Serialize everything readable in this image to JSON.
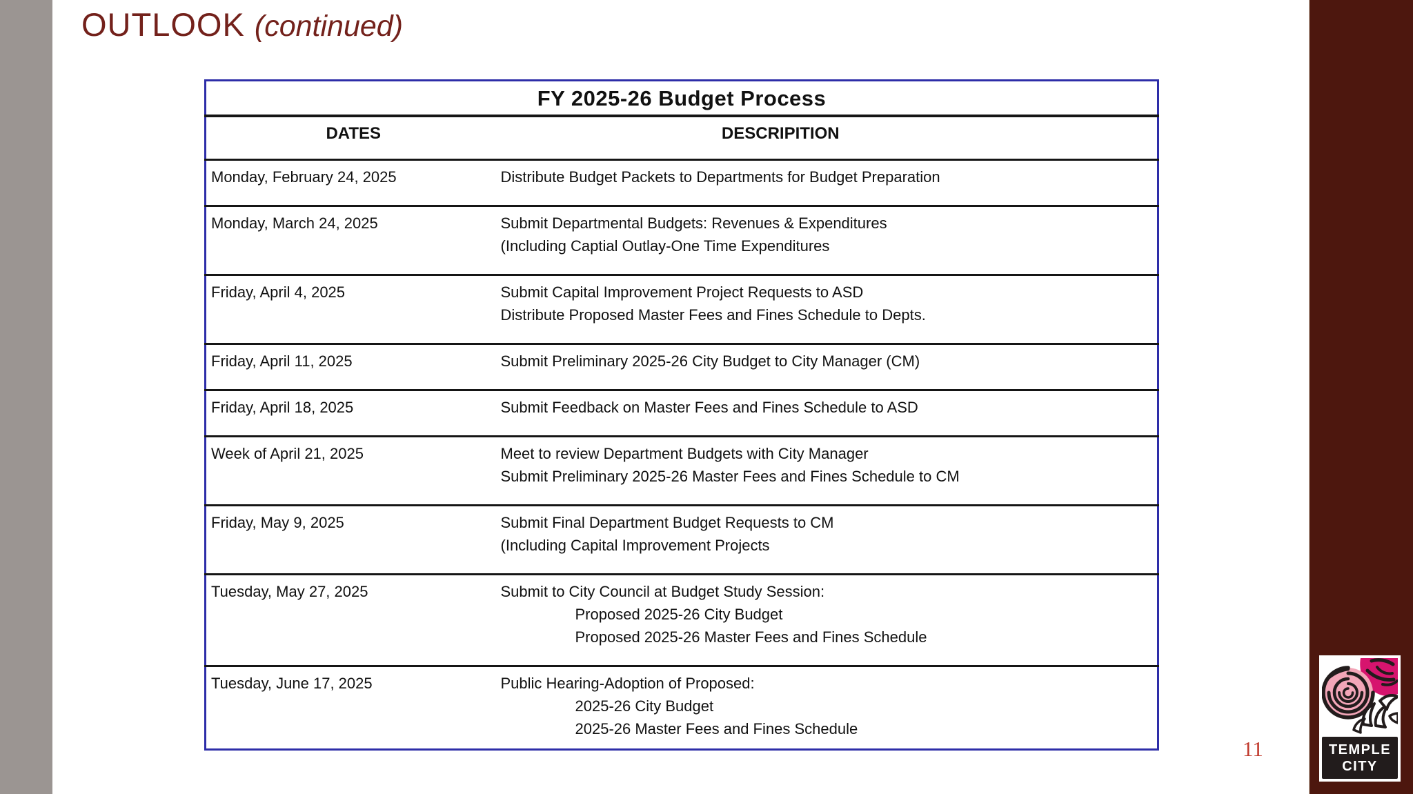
{
  "slide": {
    "title_main": "OUTLOOK",
    "title_suffix": "(continued)",
    "page_number": "11"
  },
  "colors": {
    "accent_maroon": "#4d170e",
    "title_maroon": "#73211b",
    "left_bar_gray": "#9b9592",
    "table_border_blue": "#2d2da8",
    "page_number_red": "#c13a2d",
    "logo_magenta": "#d6146e",
    "logo_pink": "#f3a6b8"
  },
  "logo": {
    "line1": "TEMPLE",
    "line2": "CITY"
  },
  "table": {
    "title": "FY 2025-26 Budget Process",
    "columns": [
      "DATES",
      "DESCRIPITION"
    ],
    "rows": [
      {
        "date": "Monday, February 24, 2025",
        "lines": [
          {
            "text": "Distribute Budget Packets to Departments for Budget Preparation",
            "indent": false
          }
        ]
      },
      {
        "date": "Monday, March 24, 2025",
        "lines": [
          {
            "text": "Submit Departmental Budgets: Revenues & Expenditures",
            "indent": false
          },
          {
            "text": "(Including Captial Outlay-One Time Expenditures",
            "indent": false
          }
        ]
      },
      {
        "date": "Friday, April 4, 2025",
        "lines": [
          {
            "text": "Submit Capital Improvement Project Requests to ASD",
            "indent": false
          },
          {
            "text": "Distribute Proposed Master Fees and Fines Schedule to Depts.",
            "indent": false
          }
        ]
      },
      {
        "date": "Friday, April 11, 2025",
        "lines": [
          {
            "text": "Submit Preliminary 2025-26 City Budget to City Manager (CM)",
            "indent": false
          }
        ]
      },
      {
        "date": "Friday, April 18, 2025",
        "lines": [
          {
            "text": "Submit Feedback on Master Fees and Fines Schedule to ASD",
            "indent": false
          }
        ]
      },
      {
        "date": "Week of April 21, 2025",
        "lines": [
          {
            "text": "Meet to review Department Budgets with City Manager",
            "indent": false
          },
          {
            "text": "Submit Preliminary 2025-26 Master Fees and Fines Schedule to CM",
            "indent": false
          }
        ]
      },
      {
        "date": "Friday, May 9, 2025",
        "lines": [
          {
            "text": "Submit Final Department Budget Requests to CM",
            "indent": false
          },
          {
            "text": "(Including Capital Improvement Projects",
            "indent": false
          }
        ]
      },
      {
        "date": "Tuesday, May 27, 2025",
        "lines": [
          {
            "text": "Submit to City Council at Budget Study Session:",
            "indent": false
          },
          {
            "text": "Proposed 2025-26 City Budget",
            "indent": true
          },
          {
            "text": "Proposed 2025-26 Master Fees and Fines Schedule",
            "indent": true
          }
        ]
      },
      {
        "date": "Tuesday, June 17, 2025",
        "lines": [
          {
            "text": "Public Hearing-Adoption of Proposed:",
            "indent": false
          },
          {
            "text": "2025-26 City Budget",
            "indent": true
          },
          {
            "text": "2025-26 Master Fees and Fines Schedule",
            "indent": true
          }
        ]
      }
    ]
  }
}
